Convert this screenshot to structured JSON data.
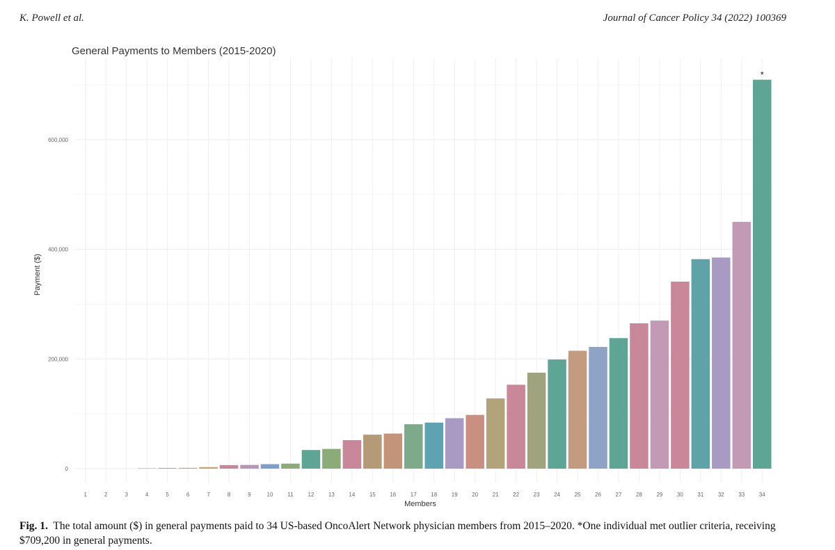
{
  "header": {
    "left": "K. Powell et al.",
    "right": "Journal of Cancer Policy 34 (2022) 100369"
  },
  "caption": {
    "label": "Fig. 1.",
    "text": "The total amount ($) in general payments paid to 34 US-based OncoAlert Network physician members from 2015–2020. *One individual met outlier criteria, receiving $709,200 in general payments."
  },
  "chart_data": {
    "type": "bar",
    "title": "General Payments to Members (2015-2020)",
    "xlabel": "Members",
    "ylabel": "Payment ($)",
    "categories": [
      "1",
      "2",
      "3",
      "4",
      "5",
      "6",
      "7",
      "8",
      "9",
      "10",
      "11",
      "12",
      "13",
      "14",
      "15",
      "16",
      "17",
      "18",
      "19",
      "20",
      "21",
      "22",
      "23",
      "24",
      "25",
      "26",
      "27",
      "28",
      "29",
      "30",
      "31",
      "32",
      "33",
      "34"
    ],
    "values": [
      0,
      0,
      0,
      800,
      1200,
      1500,
      2800,
      6500,
      6800,
      8200,
      9200,
      34000,
      36000,
      52000,
      62000,
      64000,
      81000,
      84000,
      92000,
      98000,
      128000,
      153000,
      175000,
      199000,
      215000,
      222000,
      238000,
      265000,
      270000,
      341000,
      382000,
      385000,
      450000,
      709200
    ],
    "colors": [
      "#5fa596",
      "#c8a17a",
      "#8fa3c6",
      "#c79aae",
      "#8fa3c6",
      "#c8a17a",
      "#c4a36f",
      "#c8889a",
      "#b497b6",
      "#7f9fc8",
      "#8dab78",
      "#5fa596",
      "#8dab78",
      "#c8889a",
      "#b49a76",
      "#c39479",
      "#7ea98a",
      "#5fa3b3",
      "#a99ac3",
      "#c98f80",
      "#b3a37a",
      "#c8889a",
      "#9fa47f",
      "#5fa596",
      "#c39c7f",
      "#8fa3c6",
      "#5fa596",
      "#c8889a",
      "#c29ab6",
      "#c8889a",
      "#5fa3a8",
      "#a99ac3",
      "#c39ab6",
      "#5fa596"
    ],
    "ylim": [
      0,
      710000
    ],
    "yticks": [
      0,
      200000,
      400000,
      600000
    ],
    "ytick_labels": [
      "0",
      "200,000",
      "400,000",
      "600,000"
    ],
    "annotations": [
      {
        "category": "34",
        "text": "*"
      }
    ],
    "grid": true,
    "legend": "none"
  }
}
